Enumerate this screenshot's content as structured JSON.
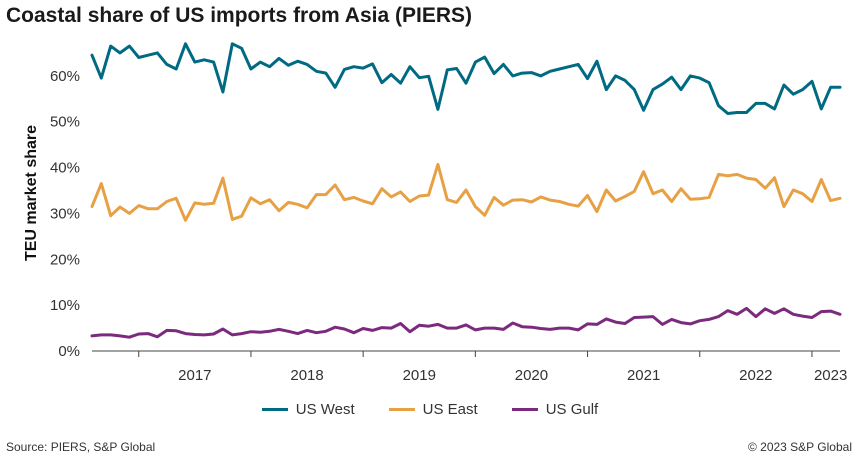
{
  "chart_data": {
    "type": "line",
    "title": "Coastal share of US imports from Asia (PIERS)",
    "ylabel": "TEU market share",
    "ylim": [
      0,
      70
    ],
    "yticks": [
      0,
      10,
      20,
      30,
      40,
      50,
      60
    ],
    "ytick_labels": [
      "0%",
      "10%",
      "20%",
      "30%",
      "40%",
      "50%",
      "60%"
    ],
    "x_start": "2016-08",
    "x_end": "2023-04",
    "xtick_labels": [
      "2017",
      "2018",
      "2019",
      "2020",
      "2021",
      "2022",
      "2023"
    ],
    "grid": false,
    "legend_position": "bottom",
    "series": [
      {
        "name": "US West",
        "color": "#006a82",
        "values": [
          64.5,
          59.5,
          66.5,
          65,
          66.5,
          64,
          64.5,
          65,
          62.5,
          61.5,
          67,
          63,
          63.5,
          63,
          56.5,
          67,
          66,
          61.5,
          63,
          62,
          63.8,
          62.3,
          63.2,
          62.5,
          61,
          60.6,
          57.5,
          61.4,
          62,
          61.7,
          62.6,
          58.5,
          60.3,
          58.4,
          62,
          59.6,
          59.9,
          52.7,
          61.3,
          61.6,
          58.4,
          63,
          64.1,
          60.5,
          62.5,
          60,
          60.6,
          60.7,
          60,
          61,
          61.5,
          62,
          62.5,
          59.4,
          63.2,
          57,
          60,
          59,
          57,
          52.5,
          57,
          58.2,
          59.7,
          57,
          60,
          59.5,
          58.5,
          53.5,
          51.8,
          52,
          52,
          54,
          54,
          52.8,
          58,
          56,
          57,
          58.8,
          52.8,
          57.5,
          57.5
        ]
      },
      {
        "name": "US East",
        "color": "#e8a045",
        "values": [
          31.5,
          36.5,
          29.5,
          31.4,
          30,
          31.7,
          31,
          31,
          32.6,
          33.3,
          28.5,
          32.3,
          32,
          32.2,
          37.7,
          28.7,
          29.4,
          33.4,
          32.1,
          33,
          30.6,
          32.4,
          32,
          31.2,
          34.1,
          34.1,
          36.2,
          33,
          33.5,
          32.7,
          32.1,
          35.4,
          33.6,
          34.7,
          32.6,
          33.8,
          34,
          40.7,
          33,
          32.4,
          35.1,
          31.5,
          29.6,
          33.5,
          31.8,
          32.9,
          33,
          32.5,
          33.6,
          32.9,
          32.6,
          32,
          31.6,
          33.9,
          30.4,
          35.1,
          32.7,
          33.7,
          34.8,
          39.1,
          34.3,
          35.1,
          32.6,
          35.4,
          33.1,
          33.2,
          33.5,
          38.5,
          38.2,
          38.5,
          37.7,
          37.4,
          35.5,
          37.8,
          31.5,
          35.1,
          34.3,
          32.6,
          37.4,
          32.8,
          33.3
        ]
      },
      {
        "name": "US Gulf",
        "color": "#7b2a7d",
        "values": [
          3.3,
          3.5,
          3.5,
          3.3,
          3,
          3.7,
          3.8,
          3.1,
          4.5,
          4.4,
          3.8,
          3.6,
          3.5,
          3.7,
          4.8,
          3.5,
          3.8,
          4.2,
          4.1,
          4.3,
          4.7,
          4.3,
          3.8,
          4.5,
          4,
          4.3,
          5.2,
          4.8,
          4,
          4.9,
          4.5,
          5.1,
          5,
          6,
          4.2,
          5.6,
          5.4,
          5.8,
          5,
          5,
          5.7,
          4.6,
          5,
          5,
          4.7,
          6.1,
          5.3,
          5.2,
          4.9,
          4.7,
          5,
          5,
          4.6,
          5.9,
          5.8,
          7,
          6.3,
          6,
          7.3,
          7.4,
          7.5,
          5.8,
          6.9,
          6.2,
          5.9,
          6.6,
          6.9,
          7.5,
          8.8,
          8,
          9.3,
          7.5,
          9.2,
          8.2,
          9.2,
          8,
          7.6,
          7.3,
          8.6,
          8.7,
          8
        ]
      }
    ]
  },
  "footer": {
    "source": "Source: PIERS, S&P Global",
    "copyright": "© 2023 S&P Global"
  }
}
